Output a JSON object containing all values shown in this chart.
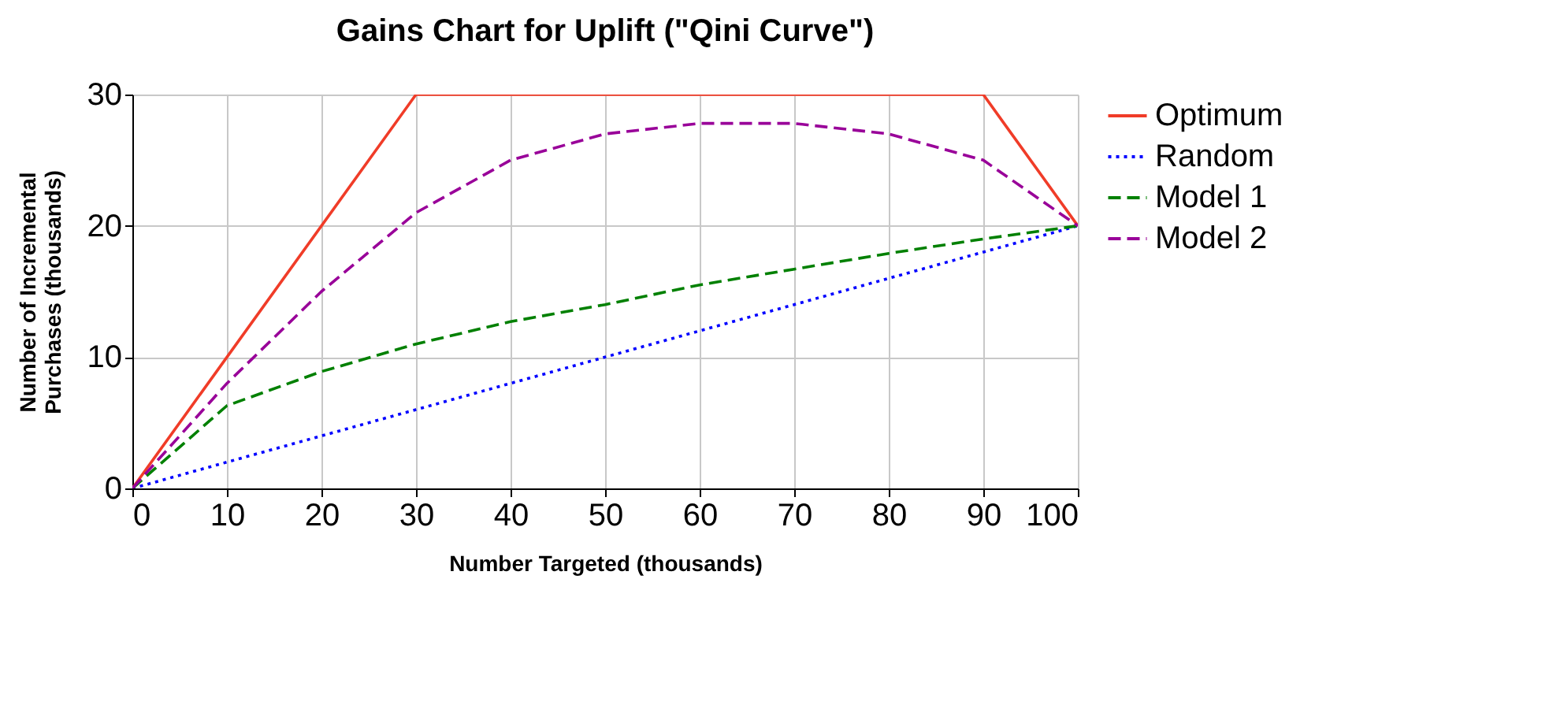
{
  "chart_data": {
    "type": "line",
    "title": "Gains Chart for Uplift (\"Qini Curve\")",
    "xlabel": "Number Targeted (thousands)",
    "ylabel": "Number of Incremental\nPurchases (thousands)",
    "x": [
      0,
      10,
      20,
      30,
      40,
      50,
      60,
      70,
      80,
      90,
      100
    ],
    "series": [
      {
        "name": "Optimum",
        "color": "#f03c28",
        "line_style": "solid",
        "x": [
          0,
          30,
          90,
          100
        ],
        "values": [
          0,
          30,
          30,
          20
        ]
      },
      {
        "name": "Random",
        "color": "#0000ff",
        "line_style": "dotted",
        "values": [
          0,
          2,
          4,
          6,
          8,
          10,
          12,
          14,
          16,
          18,
          20
        ]
      },
      {
        "name": "Model 1",
        "color": "#008000",
        "line_style": "dashed",
        "values": [
          0,
          6.3,
          8.9,
          11,
          12.7,
          14,
          15.5,
          16.7,
          17.9,
          19,
          20
        ]
      },
      {
        "name": "Model 2",
        "color": "#990099",
        "line_style": "dashed",
        "values": [
          0,
          8,
          15,
          21,
          25,
          27,
          27.8,
          27.8,
          27,
          25,
          20
        ]
      }
    ],
    "xlim": [
      0,
      100
    ],
    "xticks": [
      0,
      10,
      20,
      30,
      40,
      50,
      60,
      70,
      80,
      90,
      100
    ],
    "ylim": [
      0,
      30
    ],
    "yticks": [
      0,
      10,
      20,
      30
    ],
    "grid": true,
    "legend": "right",
    "marker": "none"
  }
}
